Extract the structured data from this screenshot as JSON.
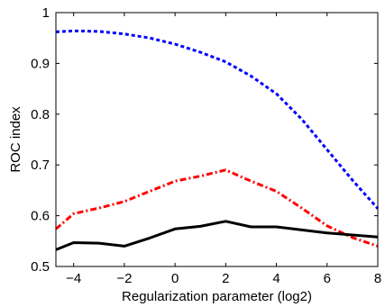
{
  "chart_data": {
    "type": "line",
    "title": "",
    "xlabel": "Regularization parameter (log2)",
    "ylabel": "ROC index",
    "xlim": [
      -4.7,
      8
    ],
    "ylim": [
      0.5,
      1
    ],
    "xticks": [
      -4,
      -2,
      0,
      2,
      4,
      6,
      8
    ],
    "yticks": [
      0.5,
      0.6,
      0.7,
      0.8,
      0.9,
      1
    ],
    "xtick_labels": [
      "−4",
      "−2",
      "0",
      "2",
      "4",
      "6",
      "8"
    ],
    "ytick_labels": [
      "0.5",
      "0.6",
      "0.7",
      "0.8",
      "0.9",
      "1"
    ],
    "grid": false,
    "legend": "none",
    "series": [
      {
        "style": "dotted",
        "color": "#0000ff",
        "x": [
          -4.7,
          -4,
          -3,
          -2,
          -1,
          0,
          1,
          2,
          3,
          4,
          5,
          6,
          7,
          8
        ],
        "y": [
          0.962,
          0.964,
          0.963,
          0.958,
          0.95,
          0.938,
          0.922,
          0.903,
          0.875,
          0.84,
          0.79,
          0.73,
          0.67,
          0.614
        ]
      },
      {
        "style": "dashdot",
        "color": "#ff0000",
        "x": [
          -4.7,
          -4,
          -3,
          -2,
          -1,
          0,
          1,
          2,
          3,
          4,
          5,
          6,
          7,
          8
        ],
        "y": [
          0.574,
          0.604,
          0.615,
          0.628,
          0.648,
          0.668,
          0.678,
          0.69,
          0.668,
          0.648,
          0.615,
          0.58,
          0.557,
          0.54
        ]
      },
      {
        "style": "solid",
        "color": "#000000",
        "x": [
          -4.7,
          -4,
          -3,
          -2,
          -1,
          0,
          1,
          2,
          3,
          4,
          5,
          6,
          7,
          8
        ],
        "y": [
          0.533,
          0.547,
          0.546,
          0.54,
          0.556,
          0.574,
          0.579,
          0.589,
          0.578,
          0.578,
          0.572,
          0.566,
          0.562,
          0.558
        ]
      }
    ]
  }
}
